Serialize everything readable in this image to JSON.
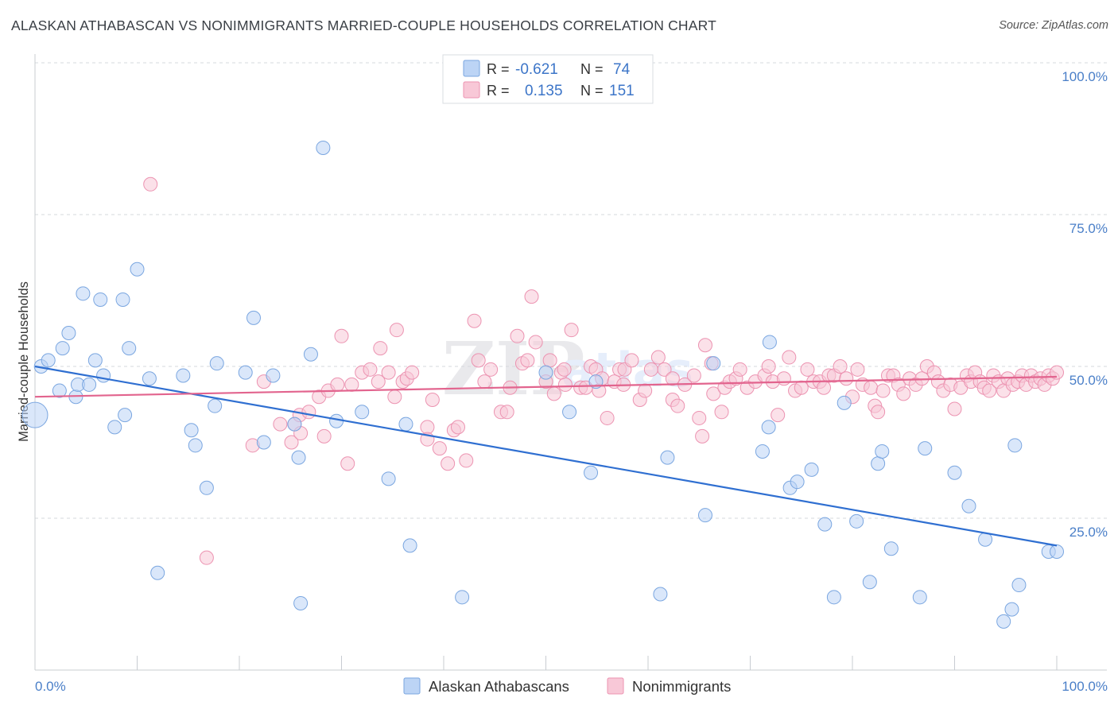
{
  "title": "ALASKAN ATHABASCAN VS NONIMMIGRANTS MARRIED-COUPLE HOUSEHOLDS CORRELATION CHART",
  "source": "Source: ZipAtlas.com",
  "watermark": {
    "main": "ZIP",
    "sub": "atlas"
  },
  "colors": {
    "blue_fill": "#bcd4f5",
    "blue_stroke": "#7aa6e0",
    "blue_line": "#2f6fd1",
    "pink_fill": "#f8c8d7",
    "pink_stroke": "#ec93b1",
    "pink_line": "#e2648e",
    "grid": "#d6d9de",
    "axis_text": "#4a7fc8"
  },
  "legend": {
    "rows": [
      {
        "r_label": "R =",
        "r_value": "-0.621",
        "n_label": "N =",
        "n_value": "74",
        "color": "blue"
      },
      {
        "r_label": "R =",
        "r_value": "0.135",
        "n_label": "N =",
        "n_value": "151",
        "color": "pink"
      }
    ]
  },
  "bottom_legend": [
    {
      "label": "Alaskan Athabascans",
      "color": "blue"
    },
    {
      "label": "Nonimmigrants",
      "color": "pink"
    }
  ],
  "chart_data": {
    "type": "scatter",
    "title": "ALASKAN ATHABASCAN VS NONIMMIGRANTS MARRIED-COUPLE HOUSEHOLDS CORRELATION CHART",
    "xlabel": "",
    "ylabel": "Married-couple Households",
    "xlim": [
      0,
      100
    ],
    "ylim": [
      0,
      105
    ],
    "x_tick_labels": {
      "left": "0.0%",
      "right": "100.0%"
    },
    "y_ticks": [
      {
        "value": 25,
        "label": "25.0%"
      },
      {
        "value": 50,
        "label": "50.0%"
      },
      {
        "value": 75,
        "label": "75.0%"
      },
      {
        "value": 100,
        "label": "100.0%"
      }
    ],
    "grid": "horizontal dashed",
    "series": [
      {
        "name": "Alaskan Athabascans",
        "color": "blue",
        "r": -0.621,
        "n": 74,
        "trend": {
          "x": [
            0,
            100
          ],
          "y": [
            50.0,
            20.5
          ]
        },
        "points": [
          [
            0,
            42,
            3
          ],
          [
            0.6,
            50,
            1
          ],
          [
            1.3,
            51,
            1
          ],
          [
            2.4,
            46,
            1
          ],
          [
            2.7,
            53,
            1
          ],
          [
            3.3,
            55.5,
            1
          ],
          [
            4.0,
            45,
            1
          ],
          [
            4.2,
            47,
            1
          ],
          [
            4.7,
            62,
            1
          ],
          [
            5.3,
            47,
            1
          ],
          [
            5.9,
            51,
            1
          ],
          [
            6.4,
            61,
            1
          ],
          [
            6.7,
            48.5,
            1
          ],
          [
            7.8,
            40,
            1
          ],
          [
            8.6,
            61,
            1
          ],
          [
            8.8,
            42,
            1
          ],
          [
            9.2,
            53,
            1
          ],
          [
            10.0,
            66,
            1
          ],
          [
            11.2,
            48,
            1
          ],
          [
            12.0,
            16,
            1
          ],
          [
            14.5,
            48.5,
            1
          ],
          [
            15.3,
            39.5,
            1
          ],
          [
            15.7,
            37,
            1
          ],
          [
            16.8,
            30,
            1
          ],
          [
            17.6,
            43.5,
            1
          ],
          [
            17.8,
            50.5,
            1
          ],
          [
            20.6,
            49,
            1
          ],
          [
            21.4,
            58,
            1
          ],
          [
            22.4,
            37.5,
            1
          ],
          [
            23.3,
            48.5,
            1
          ],
          [
            25.4,
            40.5,
            1
          ],
          [
            25.8,
            35,
            1
          ],
          [
            26.0,
            11,
            1
          ],
          [
            27.0,
            52,
            1
          ],
          [
            28.2,
            86,
            1
          ],
          [
            29.5,
            41,
            1
          ],
          [
            32.0,
            42.5,
            1
          ],
          [
            34.6,
            31.5,
            1
          ],
          [
            36.3,
            40.5,
            1
          ],
          [
            36.7,
            20.5,
            1
          ],
          [
            41.8,
            12,
            1
          ],
          [
            50.0,
            49,
            1
          ],
          [
            52.3,
            42.5,
            1
          ],
          [
            54.4,
            32.5,
            1
          ],
          [
            54.9,
            47.5,
            1
          ],
          [
            61.2,
            12.5,
            1
          ],
          [
            61.9,
            35,
            1
          ],
          [
            65.6,
            25.5,
            1
          ],
          [
            66.4,
            50.5,
            1
          ],
          [
            71.2,
            36,
            1
          ],
          [
            71.8,
            40,
            1
          ],
          [
            71.9,
            54,
            1
          ],
          [
            76.0,
            33,
            1
          ],
          [
            73.9,
            30,
            1
          ],
          [
            74.6,
            31,
            1
          ],
          [
            77.3,
            24,
            1
          ],
          [
            78.2,
            12,
            1
          ],
          [
            80.4,
            24.5,
            1
          ],
          [
            81.7,
            14.5,
            1
          ],
          [
            82.5,
            34,
            1
          ],
          [
            82.9,
            36,
            1
          ],
          [
            79.2,
            44,
            1
          ],
          [
            83.8,
            20,
            1
          ],
          [
            86.6,
            12,
            1
          ],
          [
            87.1,
            36.5,
            1
          ],
          [
            90.0,
            32.5,
            1
          ],
          [
            91.4,
            27,
            1
          ],
          [
            93.0,
            21.5,
            1
          ],
          [
            94.8,
            8,
            1
          ],
          [
            95.6,
            10,
            1
          ],
          [
            95.9,
            37,
            1
          ],
          [
            96.3,
            14,
            1
          ],
          [
            99.2,
            19.5,
            1
          ],
          [
            100,
            19.5,
            1
          ]
        ]
      },
      {
        "name": "Nonimmigrants",
        "color": "pink",
        "r": 0.135,
        "n": 151,
        "trend": {
          "x": [
            0,
            100
          ],
          "y": [
            45.0,
            48.3
          ]
        },
        "points": [
          [
            11.3,
            80,
            1
          ],
          [
            16.8,
            18.5,
            1
          ],
          [
            21.3,
            37,
            1
          ],
          [
            22.4,
            47.5,
            1
          ],
          [
            24.0,
            40.5,
            1
          ],
          [
            25.1,
            37.5,
            1
          ],
          [
            25.4,
            40.5,
            1
          ],
          [
            25.9,
            42,
            1
          ],
          [
            26.0,
            39,
            1
          ],
          [
            26.8,
            42.5,
            1
          ],
          [
            27.8,
            45,
            1
          ],
          [
            28.3,
            38.5,
            1
          ],
          [
            28.7,
            46,
            1
          ],
          [
            29.6,
            47,
            1
          ],
          [
            30.0,
            55,
            1
          ],
          [
            30.6,
            34,
            1
          ],
          [
            31.0,
            47,
            1
          ],
          [
            32.0,
            49,
            1
          ],
          [
            32.8,
            49.5,
            1
          ],
          [
            33.6,
            47.5,
            1
          ],
          [
            33.8,
            53,
            1
          ],
          [
            34.6,
            49,
            1
          ],
          [
            35.2,
            45,
            1
          ],
          [
            35.4,
            56,
            1
          ],
          [
            36.0,
            47.5,
            1
          ],
          [
            36.4,
            48,
            1
          ],
          [
            36.9,
            49,
            1
          ],
          [
            38.4,
            40,
            1
          ],
          [
            38.4,
            38,
            1
          ],
          [
            38.9,
            44.5,
            1
          ],
          [
            39.6,
            36.5,
            1
          ],
          [
            40.4,
            34,
            1
          ],
          [
            41.0,
            39.5,
            1
          ],
          [
            41.4,
            40,
            1
          ],
          [
            42.2,
            34.5,
            1
          ],
          [
            43.0,
            57.5,
            1
          ],
          [
            43.4,
            51,
            1
          ],
          [
            44.0,
            47.5,
            1
          ],
          [
            44.6,
            49.5,
            1
          ],
          [
            45.6,
            42.5,
            1
          ],
          [
            46.2,
            42.5,
            1
          ],
          [
            46.5,
            46.5,
            1
          ],
          [
            47.2,
            55,
            1
          ],
          [
            47.7,
            50.5,
            1
          ],
          [
            48.2,
            51,
            1
          ],
          [
            48.6,
            61.5,
            1
          ],
          [
            49.0,
            54,
            1
          ],
          [
            50.0,
            47.5,
            1
          ],
          [
            50.4,
            51,
            1
          ],
          [
            50.8,
            45.5,
            1
          ],
          [
            51.5,
            49,
            1
          ],
          [
            51.8,
            49.5,
            1
          ],
          [
            51.9,
            47,
            1
          ],
          [
            52.5,
            56,
            1
          ],
          [
            53.4,
            46.5,
            1
          ],
          [
            53.9,
            46.5,
            1
          ],
          [
            54.4,
            50,
            1
          ],
          [
            54.9,
            49.5,
            1
          ],
          [
            55.2,
            46,
            1
          ],
          [
            55.5,
            48,
            1
          ],
          [
            56.0,
            41.5,
            1
          ],
          [
            56.7,
            47.5,
            1
          ],
          [
            57.2,
            49.5,
            1
          ],
          [
            57.7,
            49.5,
            1
          ],
          [
            58.4,
            51,
            1
          ],
          [
            59.2,
            44.5,
            1
          ],
          [
            59.7,
            46,
            1
          ],
          [
            60.3,
            49.5,
            1
          ],
          [
            61.0,
            51.5,
            1
          ],
          [
            61.6,
            49.5,
            1
          ],
          [
            62.4,
            48,
            1
          ],
          [
            62.4,
            44.5,
            1
          ],
          [
            62.9,
            43.5,
            1
          ],
          [
            63.6,
            47,
            1
          ],
          [
            64.5,
            48.5,
            1
          ],
          [
            65.0,
            41.5,
            1
          ],
          [
            65.3,
            38.5,
            1
          ],
          [
            65.6,
            53.5,
            1
          ],
          [
            66.2,
            50.5,
            1
          ],
          [
            66.4,
            45.5,
            1
          ],
          [
            67.2,
            42.5,
            1
          ],
          [
            67.5,
            46.5,
            1
          ],
          [
            68.0,
            47.5,
            1
          ],
          [
            68.6,
            48,
            1
          ],
          [
            69.0,
            49.5,
            1
          ],
          [
            69.7,
            46.5,
            1
          ],
          [
            70.5,
            47.5,
            1
          ],
          [
            71.4,
            48.5,
            1
          ],
          [
            71.8,
            50,
            1
          ],
          [
            72.2,
            47.5,
            1
          ],
          [
            72.7,
            42,
            1
          ],
          [
            73.3,
            48,
            1
          ],
          [
            73.8,
            51.5,
            1
          ],
          [
            74.4,
            46,
            1
          ],
          [
            75.0,
            46.5,
            1
          ],
          [
            75.6,
            49.5,
            1
          ],
          [
            76.2,
            47.5,
            1
          ],
          [
            76.8,
            47.5,
            1
          ],
          [
            77.2,
            46.5,
            1
          ],
          [
            77.7,
            48.5,
            1
          ],
          [
            78.2,
            48.5,
            1
          ],
          [
            78.8,
            50,
            1
          ],
          [
            79.4,
            48,
            1
          ],
          [
            80.0,
            45,
            1
          ],
          [
            80.5,
            49.5,
            1
          ],
          [
            81.0,
            47,
            1
          ],
          [
            81.8,
            46.5,
            1
          ],
          [
            82.2,
            43.5,
            1
          ],
          [
            82.5,
            42.5,
            1
          ],
          [
            83.0,
            46,
            1
          ],
          [
            83.5,
            48.5,
            1
          ],
          [
            84.0,
            48.5,
            1
          ],
          [
            84.5,
            47,
            1
          ],
          [
            85.0,
            45.5,
            1
          ],
          [
            85.6,
            48,
            1
          ],
          [
            86.2,
            47,
            1
          ],
          [
            86.8,
            48,
            1
          ],
          [
            87.3,
            50,
            1
          ],
          [
            88.0,
            49,
            1
          ],
          [
            88.4,
            47.5,
            1
          ],
          [
            88.9,
            46,
            1
          ],
          [
            89.6,
            47,
            1
          ],
          [
            90.0,
            43,
            1
          ],
          [
            90.6,
            46.5,
            1
          ],
          [
            91.2,
            48.5,
            1
          ],
          [
            91.6,
            47.5,
            1
          ],
          [
            92.0,
            49,
            1
          ],
          [
            92.5,
            47.5,
            1
          ],
          [
            92.9,
            46.5,
            1
          ],
          [
            93.4,
            46,
            1
          ],
          [
            93.8,
            48.5,
            1
          ],
          [
            94.3,
            47.5,
            1
          ],
          [
            94.8,
            46,
            1
          ],
          [
            95.2,
            48,
            1
          ],
          [
            95.7,
            47,
            1
          ],
          [
            96.2,
            47.5,
            1
          ],
          [
            96.6,
            48.5,
            1
          ],
          [
            97.0,
            47,
            1
          ],
          [
            97.5,
            48.5,
            1
          ],
          [
            97.9,
            47.5,
            1
          ],
          [
            98.4,
            48,
            1
          ],
          [
            98.8,
            47,
            1
          ],
          [
            99.2,
            48.5,
            1
          ],
          [
            99.6,
            48,
            1
          ],
          [
            100,
            49,
            1
          ],
          [
            57.6,
            47,
            1
          ]
        ]
      }
    ]
  }
}
